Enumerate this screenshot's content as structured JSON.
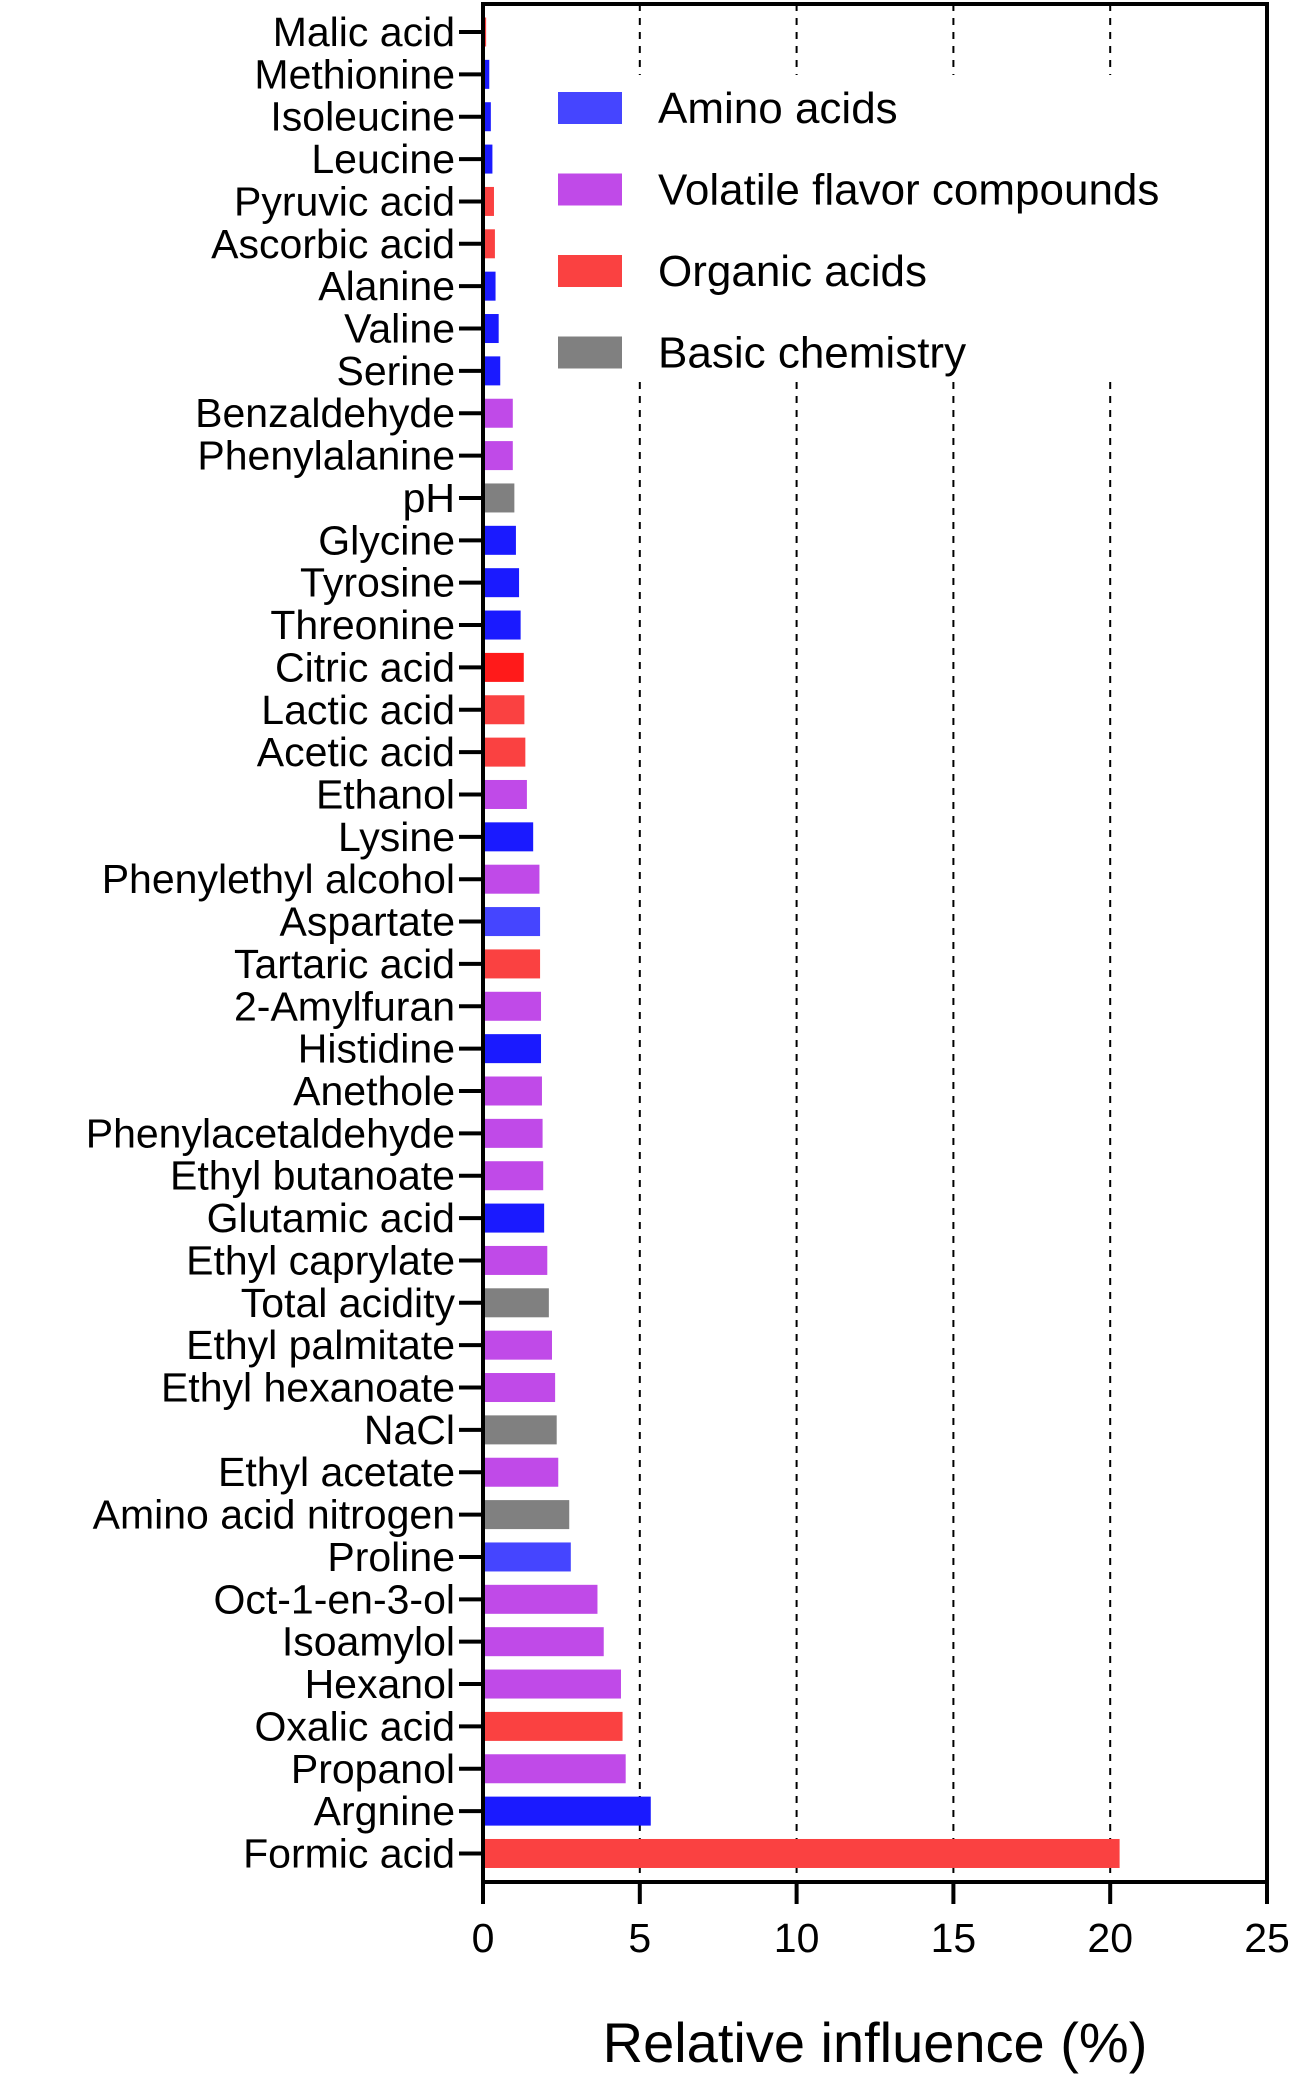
{
  "chart_data": {
    "type": "bar",
    "orientation": "horizontal",
    "xlabel": "Relative influence (%)",
    "xlim": [
      0,
      25
    ],
    "xticks": [
      "0",
      "5",
      "10",
      "15",
      "20",
      "25"
    ],
    "tick_values": [
      0,
      5,
      10,
      15,
      20,
      25
    ],
    "grid": "vertical dashed at 5, 10, 15, 20",
    "legend_placement": "top-right",
    "legend": [
      {
        "name": "Amino acids",
        "color": "#4545ff"
      },
      {
        "name": "Volatile flavor compounds",
        "color": "#c04ae8"
      },
      {
        "name": "Organic acids",
        "color": "#fa4141"
      },
      {
        "name": "Basic chemistry",
        "color": "#808080"
      }
    ],
    "colors": {
      "amino": "#1a1aff",
      "amino_light": "#4545ff",
      "volatile": "#c04ae8",
      "organic": "#fa4141",
      "organic_bright": "#ff1a1a",
      "basic": "#808080"
    },
    "bars": [
      {
        "label": "Malic acid",
        "value": 0.1,
        "color": "#fa4141"
      },
      {
        "label": "Methionine",
        "value": 0.2,
        "color": "#1a1aff"
      },
      {
        "label": "Isoleucine",
        "value": 0.25,
        "color": "#1a1aff"
      },
      {
        "label": "Leucine",
        "value": 0.3,
        "color": "#1a1aff"
      },
      {
        "label": "Pyruvic acid",
        "value": 0.35,
        "color": "#fa4141"
      },
      {
        "label": "Ascorbic acid",
        "value": 0.38,
        "color": "#fa4141"
      },
      {
        "label": "Alanine",
        "value": 0.4,
        "color": "#1a1aff"
      },
      {
        "label": "Valine",
        "value": 0.5,
        "color": "#1a1aff"
      },
      {
        "label": "Serine",
        "value": 0.55,
        "color": "#1a1aff"
      },
      {
        "label": "Benzaldehyde",
        "value": 0.95,
        "color": "#c04ae8"
      },
      {
        "label": "Phenylalanine",
        "value": 0.95,
        "color": "#c04ae8"
      },
      {
        "label": "pH",
        "value": 1.0,
        "color": "#808080"
      },
      {
        "label": "Glycine",
        "value": 1.05,
        "color": "#1a1aff"
      },
      {
        "label": "Tyrosine",
        "value": 1.15,
        "color": "#1a1aff"
      },
      {
        "label": "Threonine",
        "value": 1.2,
        "color": "#1a1aff"
      },
      {
        "label": "Citric acid",
        "value": 1.3,
        "color": "#ff1a1a"
      },
      {
        "label": "Lactic acid",
        "value": 1.32,
        "color": "#fa4141"
      },
      {
        "label": "Acetic acid",
        "value": 1.35,
        "color": "#fa4141"
      },
      {
        "label": "Ethanol",
        "value": 1.4,
        "color": "#c04ae8"
      },
      {
        "label": "Lysine",
        "value": 1.6,
        "color": "#1a1aff"
      },
      {
        "label": "Phenylethyl alcohol",
        "value": 1.8,
        "color": "#c04ae8"
      },
      {
        "label": "Aspartate",
        "value": 1.82,
        "color": "#4545ff"
      },
      {
        "label": "Tartaric acid",
        "value": 1.82,
        "color": "#fa4141"
      },
      {
        "label": "2-Amylfuran",
        "value": 1.85,
        "color": "#c04ae8"
      },
      {
        "label": "Histidine",
        "value": 1.85,
        "color": "#1a1aff"
      },
      {
        "label": "Anethole",
        "value": 1.88,
        "color": "#c04ae8"
      },
      {
        "label": "Phenylacetaldehyde",
        "value": 1.9,
        "color": "#c04ae8"
      },
      {
        "label": "Ethyl butanoate",
        "value": 1.92,
        "color": "#c04ae8"
      },
      {
        "label": "Glutamic acid",
        "value": 1.95,
        "color": "#1a1aff"
      },
      {
        "label": "Ethyl caprylate",
        "value": 2.05,
        "color": "#c04ae8"
      },
      {
        "label": "Total acidity",
        "value": 2.1,
        "color": "#808080"
      },
      {
        "label": "Ethyl palmitate",
        "value": 2.2,
        "color": "#c04ae8"
      },
      {
        "label": "Ethyl hexanoate",
        "value": 2.3,
        "color": "#c04ae8"
      },
      {
        "label": "NaCl",
        "value": 2.35,
        "color": "#808080"
      },
      {
        "label": "Ethyl acetate",
        "value": 2.4,
        "color": "#c04ae8"
      },
      {
        "label": "Amino acid nitrogen",
        "value": 2.75,
        "color": "#808080"
      },
      {
        "label": "Proline",
        "value": 2.8,
        "color": "#4545ff"
      },
      {
        "label": "Oct-1-en-3-ol",
        "value": 3.65,
        "color": "#c04ae8"
      },
      {
        "label": "Isoamylol",
        "value": 3.85,
        "color": "#c04ae8"
      },
      {
        "label": "Hexanol",
        "value": 4.4,
        "color": "#c04ae8"
      },
      {
        "label": "Oxalic acid",
        "value": 4.45,
        "color": "#fa4141"
      },
      {
        "label": "Propanol",
        "value": 4.55,
        "color": "#c04ae8"
      },
      {
        "label": "Argnine",
        "value": 5.35,
        "color": "#1a1aff"
      },
      {
        "label": "Formic acid",
        "value": 20.3,
        "color": "#fa4141"
      }
    ]
  }
}
